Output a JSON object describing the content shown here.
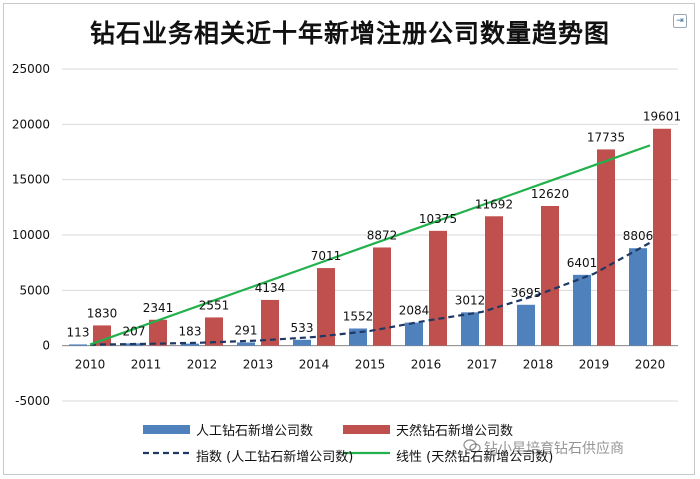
{
  "chart_data": {
    "type": "bar",
    "title": "钻石业务相关近十年新增注册公司数量趋势图",
    "categories": [
      "2010",
      "2011",
      "2012",
      "2013",
      "2014",
      "2015",
      "2016",
      "2017",
      "2018",
      "2019",
      "2020"
    ],
    "series": [
      {
        "name": "人工钻石新增公司数",
        "kind": "bar",
        "color": "#4f81bd",
        "values": [
          113,
          207,
          183,
          291,
          533,
          1552,
          2084,
          3012,
          3695,
          6401,
          8806
        ],
        "labels": [
          "113",
          "207",
          "183",
          "291",
          "533",
          "1552",
          "2084",
          "3012",
          "3695",
          "6401",
          "8806"
        ]
      },
      {
        "name": "天然钻石新增公司数",
        "kind": "bar",
        "color": "#c0504d",
        "values": [
          1830,
          2341,
          2551,
          4134,
          7011,
          8872,
          10375,
          11692,
          12620,
          17735,
          19601
        ],
        "labels": [
          "1830",
          "2341",
          "2551",
          "4134",
          "7011",
          "8872",
          "10375",
          "11692",
          "12620",
          "17735",
          "19601"
        ]
      },
      {
        "name": "指数 (人工钻石新增公司数)",
        "kind": "exponential-trendline",
        "color": "#1f3864",
        "values": [
          90,
          160,
          270,
          460,
          780,
          1330,
          2250,
          3050,
          4600,
          6500,
          9300
        ]
      },
      {
        "name": "线性 (天然钻石新增公司数)",
        "kind": "linear-trendline",
        "color": "#22b14c",
        "values": [
          100,
          1900,
          3700,
          5500,
          7300,
          9100,
          10900,
          12700,
          14500,
          16300,
          18100
        ]
      }
    ],
    "yticks": [
      "25000",
      "20000",
      "15000",
      "10000",
      "5000",
      "0",
      "-5000"
    ],
    "ylim": [
      -5000,
      25000
    ],
    "grid": true,
    "legend": "bottom"
  },
  "legend": {
    "items": [
      {
        "label": "人工钻石新增公司数"
      },
      {
        "label": "天然钻石新增公司数"
      },
      {
        "label": "指数 (人工钻石新增公司数)"
      },
      {
        "label": "线性 (天然钻石新增公司数)"
      }
    ]
  },
  "watermark": "钻小星培育钻石供应商",
  "icons": {
    "corner": "exit-frame-icon",
    "watermark": "wechat-icon"
  }
}
